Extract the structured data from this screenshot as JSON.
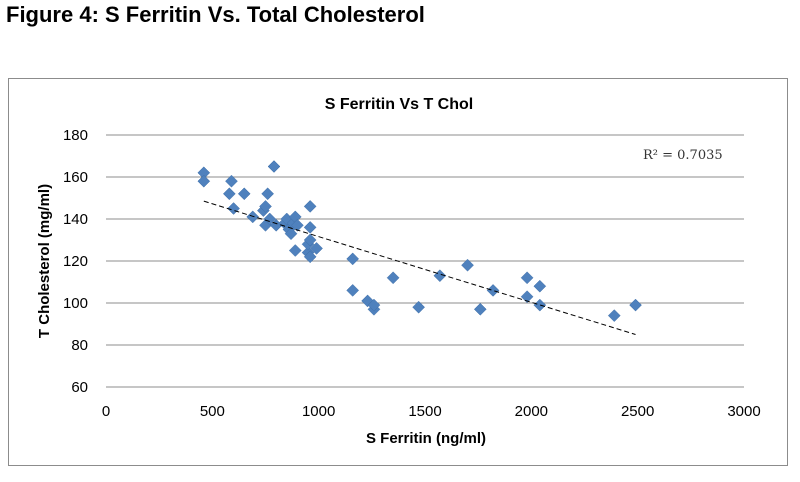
{
  "figure_title": "Figure 4: S Ferritin Vs. Total Cholesterol",
  "chart_data": {
    "type": "scatter",
    "title": "S Ferritin Vs T Chol",
    "xlabel": "S Ferritin (ng/ml)",
    "ylabel": "T Cholesterol (mg/ml)",
    "xlim": [
      0,
      3000
    ],
    "ylim": [
      60,
      180
    ],
    "xticks": [
      0,
      500,
      1000,
      1500,
      2000,
      2500,
      3000
    ],
    "yticks": [
      60,
      80,
      100,
      120,
      140,
      160,
      180
    ],
    "grid": "horizontal",
    "marker_color": "#4F81BD",
    "annotation": "R² = 0.7035",
    "trendline": {
      "type": "linear",
      "style": "dashed",
      "x": [
        460,
        2490
      ],
      "y": [
        148.5,
        85
      ]
    },
    "series": [
      {
        "points": [
          [
            460,
            162
          ],
          [
            460,
            158
          ],
          [
            590,
            158
          ],
          [
            580,
            152
          ],
          [
            600,
            145
          ],
          [
            650,
            152
          ],
          [
            690,
            141
          ],
          [
            740,
            144
          ],
          [
            750,
            146
          ],
          [
            760,
            152
          ],
          [
            750,
            137
          ],
          [
            770,
            140
          ],
          [
            790,
            165
          ],
          [
            800,
            137
          ],
          [
            840,
            138
          ],
          [
            850,
            140
          ],
          [
            860,
            135
          ],
          [
            870,
            133
          ],
          [
            880,
            138
          ],
          [
            890,
            141
          ],
          [
            900,
            137
          ],
          [
            890,
            125
          ],
          [
            950,
            124
          ],
          [
            950,
            128
          ],
          [
            960,
            130
          ],
          [
            960,
            146
          ],
          [
            960,
            136
          ],
          [
            990,
            126
          ],
          [
            960,
            122
          ],
          [
            1160,
            121
          ],
          [
            1160,
            106
          ],
          [
            1230,
            101
          ],
          [
            1260,
            97
          ],
          [
            1260,
            99
          ],
          [
            1350,
            112
          ],
          [
            1470,
            98
          ],
          [
            1570,
            113
          ],
          [
            1700,
            118
          ],
          [
            1760,
            97
          ],
          [
            1820,
            106
          ],
          [
            1980,
            112
          ],
          [
            1980,
            103
          ],
          [
            2040,
            108
          ],
          [
            2040,
            99
          ],
          [
            2390,
            94
          ],
          [
            2490,
            99
          ]
        ]
      }
    ]
  }
}
